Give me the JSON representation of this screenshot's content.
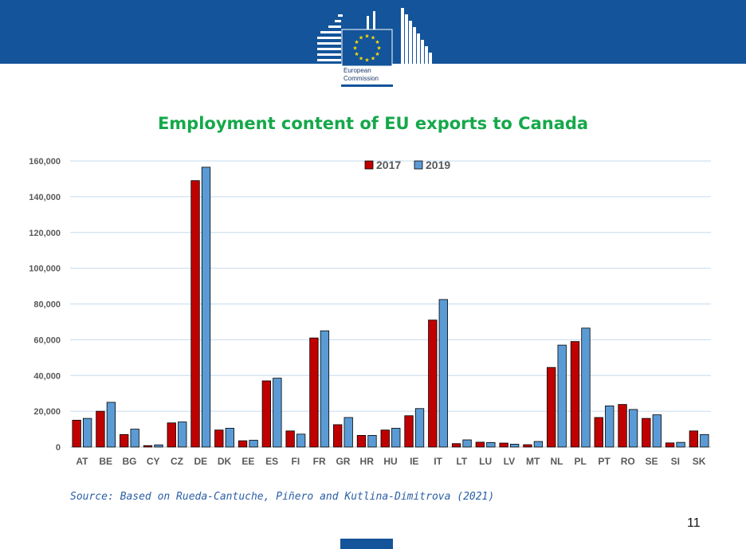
{
  "header": {
    "logo_text_line1": "European",
    "logo_text_line2": "Commission"
  },
  "chart_data": {
    "type": "bar",
    "title": "Employment content of EU exports to Canada",
    "categories": [
      "AT",
      "BE",
      "BG",
      "CY",
      "CZ",
      "DE",
      "DK",
      "EE",
      "ES",
      "FI",
      "FR",
      "GR",
      "HR",
      "HU",
      "IE",
      "IT",
      "LT",
      "LU",
      "LV",
      "MT",
      "NL",
      "PL",
      "PT",
      "RO",
      "SE",
      "SI",
      "SK"
    ],
    "series": [
      {
        "name": "2017",
        "color": "#c00000",
        "values": [
          15000,
          20000,
          7000,
          800,
          13500,
          149000,
          9500,
          3500,
          37000,
          9000,
          61000,
          12500,
          6500,
          9500,
          17500,
          71000,
          1900,
          2700,
          2200,
          1300,
          44500,
          59000,
          16500,
          23800,
          16000,
          2300,
          9000
        ]
      },
      {
        "name": "2019",
        "color": "#5b9bd5",
        "values": [
          16000,
          25000,
          10000,
          1200,
          14000,
          156500,
          10500,
          3800,
          38500,
          7200,
          65000,
          16500,
          6500,
          10500,
          21500,
          82500,
          4000,
          2500,
          1600,
          3100,
          57000,
          66500,
          23000,
          21000,
          18000,
          2600,
          7000
        ]
      }
    ],
    "ylim": [
      0,
      160000
    ],
    "yticks": [
      0,
      20000,
      40000,
      60000,
      80000,
      100000,
      120000,
      140000,
      160000
    ],
    "ytick_labels": [
      "0",
      "20,000",
      "40,000",
      "60,000",
      "80,000",
      "100,000",
      "120,000",
      "140,000",
      "160,000"
    ],
    "grid": true,
    "legend_position": "top-center"
  },
  "source_text": "Source: Based on Rueda-Cantuche, Piñero and Kutlina-Dimitrova (2021)",
  "page_number": "11"
}
